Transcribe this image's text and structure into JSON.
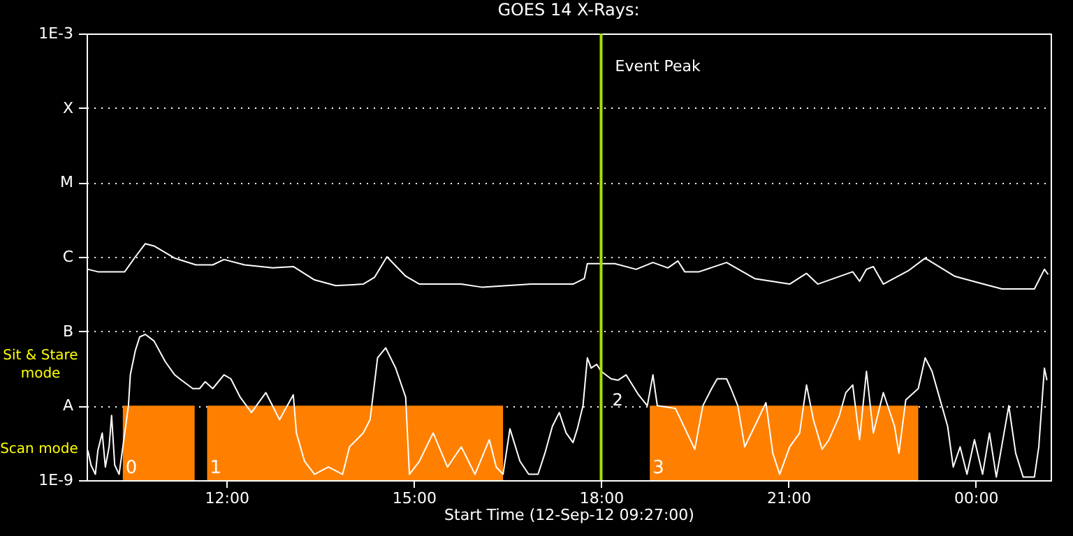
{
  "chart_data": {
    "type": "line",
    "title": "GOES 14 X-Rays:",
    "xlabel": "Start Time (12-Sep-12 09:27:00)",
    "xlim": [
      9.76,
      25.2
    ],
    "xticks": [
      {
        "value": 12,
        "label": "12:00"
      },
      {
        "value": 15,
        "label": "15:00"
      },
      {
        "value": 18,
        "label": "18:00"
      },
      {
        "value": 21,
        "label": "21:00"
      },
      {
        "value": 24,
        "label": "00:00"
      }
    ],
    "ylim": [
      1e-09,
      0.001
    ],
    "yticks": [
      {
        "value": 1e-09,
        "label": "1E-9"
      },
      {
        "value": 1e-08,
        "label": "A"
      },
      {
        "value": 1e-07,
        "label": "B"
      },
      {
        "value": 1e-06,
        "label": "C"
      },
      {
        "value": 1e-05,
        "label": "M"
      },
      {
        "value": 0.0001,
        "label": "X"
      },
      {
        "value": 0.001,
        "label": "1E-3"
      }
    ],
    "log": "y",
    "grid": "y",
    "line_style": "solid",
    "marker": "none",
    "series": [
      {
        "color": "#ffffff",
        "x": [
          9.78,
          9.94,
          10.37,
          10.54,
          10.7,
          10.84,
          11.17,
          11.51,
          11.78,
          11.96,
          12.29,
          12.74,
          13.07,
          13.41,
          13.75,
          14.19,
          14.37,
          14.57,
          14.87,
          15.09,
          15.76,
          16.1,
          16.88,
          17.55,
          17.73,
          17.78,
          18.22,
          18.56,
          18.83,
          19.07,
          19.23,
          19.34,
          19.57,
          20.01,
          20.46,
          21.02,
          21.29,
          21.47,
          22.03,
          22.14,
          22.25,
          22.36,
          22.52,
          22.92,
          23.19,
          23.66,
          24.04,
          24.42,
          24.94,
          25.1,
          25.16
        ],
        "values": [
          6.8e-07,
          6.3e-07,
          6.3e-07,
          1e-06,
          1.5e-06,
          1.4e-06,
          9.6e-07,
          7.8e-07,
          7.8e-07,
          9.2e-07,
          7.8e-07,
          7.1e-07,
          7.4e-07,
          4.9e-07,
          4.1e-07,
          4.3e-07,
          5.3e-07,
          1e-06,
          5.5e-07,
          4.3e-07,
          4.3e-07,
          3.9e-07,
          4.3e-07,
          4.3e-07,
          5.1e-07,
          8.1e-07,
          8.1e-07,
          6.8e-07,
          8.4e-07,
          7.1e-07,
          8.8e-07,
          6.3e-07,
          6.3e-07,
          8.4e-07,
          5.1e-07,
          4.3e-07,
          6e-07,
          4.3e-07,
          6.3e-07,
          4.7e-07,
          6.8e-07,
          7.4e-07,
          4.3e-07,
          6.5e-07,
          9.6e-07,
          5.5e-07,
          4.5e-07,
          3.7e-07,
          3.7e-07,
          6.8e-07,
          5.8e-07
        ]
      },
      {
        "color": "#ffffff",
        "x": [
          9.78,
          9.83,
          9.9,
          9.94,
          10.01,
          10.06,
          10.12,
          10.16,
          10.21,
          10.28,
          10.34,
          10.43,
          10.46,
          10.54,
          10.61,
          10.7,
          10.84,
          11.02,
          11.17,
          11.28,
          11.46,
          11.57,
          11.66,
          11.78,
          11.96,
          12.07,
          12.22,
          12.4,
          12.63,
          12.85,
          13.07,
          13.12,
          13.25,
          13.41,
          13.63,
          13.86,
          13.97,
          14.19,
          14.3,
          14.42,
          14.55,
          14.71,
          14.87,
          14.93,
          15.09,
          15.31,
          15.54,
          15.76,
          15.98,
          16.21,
          16.32,
          16.43,
          16.54,
          16.7,
          16.84,
          16.99,
          17.1,
          17.22,
          17.33,
          17.44,
          17.55,
          17.62,
          17.71,
          17.78,
          17.84,
          17.93,
          18.0,
          18.16,
          18.27,
          18.4,
          18.6,
          18.74,
          18.83,
          18.9,
          19.19,
          19.5,
          19.63,
          19.77,
          19.86,
          20.01,
          20.08,
          20.19,
          20.3,
          20.46,
          20.64,
          20.75,
          20.86,
          21.02,
          21.18,
          21.29,
          21.4,
          21.54,
          21.65,
          21.81,
          21.92,
          22.03,
          22.14,
          22.25,
          22.36,
          22.52,
          22.7,
          22.77,
          22.88,
          23.08,
          23.19,
          23.3,
          23.43,
          23.55,
          23.64,
          23.75,
          23.86,
          23.98,
          24.11,
          24.22,
          24.33,
          24.53,
          24.64,
          24.76,
          24.94,
          25.01,
          25.1,
          25.14
        ],
        "values": [
          2.5e-09,
          1.6e-09,
          1.2e-09,
          2.5e-09,
          4.3e-09,
          1.5e-09,
          2.8e-09,
          7.4e-09,
          1.6e-09,
          1.2e-09,
          2.8e-09,
          1e-08,
          2.6e-08,
          5.5e-08,
          8.4e-08,
          9.1e-08,
          7.4e-08,
          3.9e-08,
          2.6e-08,
          2.2e-08,
          1.7e-08,
          1.7e-08,
          2.1e-08,
          1.7e-08,
          2.6e-08,
          2.3e-08,
          1.3e-08,
          8.1e-09,
          1.5e-08,
          6.5e-09,
          1.4e-08,
          4.3e-09,
          1.8e-09,
          1.2e-09,
          1.5e-09,
          1.2e-09,
          2.8e-09,
          4.3e-09,
          6.5e-09,
          4.4e-08,
          6e-08,
          3.2e-08,
          1.3e-08,
          1.2e-09,
          1.8e-09,
          4.3e-09,
          1.5e-09,
          2.8e-09,
          1.2e-09,
          3.5e-09,
          1.5e-09,
          1.2e-09,
          4.9e-09,
          1.8e-09,
          1.2e-09,
          1.2e-09,
          2.3e-09,
          5.3e-09,
          8.1e-09,
          4.3e-09,
          3.2e-09,
          4.9e-09,
          1e-08,
          4.4e-08,
          3.2e-08,
          3.6e-08,
          2.9e-08,
          2.3e-08,
          2.2e-08,
          2.6e-08,
          1.4e-08,
          1e-08,
          2.6e-08,
          1e-08,
          9.2e-09,
          2.6e-09,
          1e-08,
          1.7e-08,
          2.3e-08,
          2.3e-08,
          1.7e-08,
          1e-08,
          2.8e-09,
          5.3e-09,
          1.1e-08,
          2.3e-09,
          1.2e-09,
          2.8e-09,
          4.3e-09,
          1.9e-08,
          6.5e-09,
          2.6e-09,
          3.5e-09,
          7.1e-09,
          1.5e-08,
          1.9e-08,
          3.5e-09,
          2.9e-08,
          4.3e-09,
          1.5e-08,
          5.3e-09,
          2.3e-09,
          1.2e-08,
          1.7e-08,
          4.4e-08,
          2.9e-08,
          1.2e-08,
          5.3e-09,
          1.5e-09,
          2.8e-09,
          1.2e-09,
          3.5e-09,
          1.2e-09,
          4.3e-09,
          1.1e-09,
          1e-08,
          2.3e-09,
          1.1e-09,
          1.1e-09,
          2.8e-09,
          3.2e-08,
          2.2e-08
        ]
      }
    ],
    "ref_lines": [
      {
        "axis": "x",
        "value": 18.0,
        "label": "Event Peak",
        "color": "#a8e000"
      }
    ],
    "bands": [
      {
        "axis": "x",
        "from": 10.34,
        "to": 11.49,
        "label": "0",
        "color": "#ff8000"
      },
      {
        "axis": "x",
        "from": 11.69,
        "to": 16.43,
        "label": "1",
        "color": "#ff8000"
      },
      {
        "axis": "x",
        "from": 18.78,
        "to": 23.08,
        "label": "3",
        "color": "#ff8000"
      }
    ],
    "annotations": [
      "Sit & Stare mode",
      "Scan mode",
      "2"
    ]
  }
}
